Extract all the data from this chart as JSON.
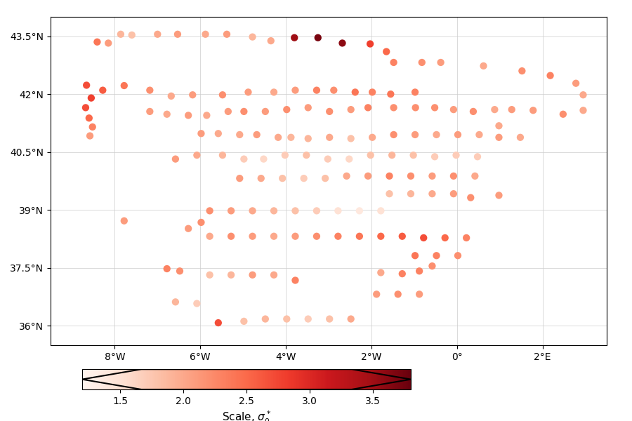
{
  "colorbar_label": "Scale, $\\sigma_0^*$",
  "vmin": 1.2,
  "vmax": 3.8,
  "cmap": "Reds",
  "xlim": [
    -9.5,
    3.5
  ],
  "ylim": [
    35.5,
    44.0
  ],
  "xticks": [
    -8,
    -6,
    -4,
    -2,
    0,
    2
  ],
  "yticks": [
    36,
    37.5,
    39,
    40.5,
    42,
    43.5
  ],
  "xtick_labels": [
    "8°W",
    "6°W",
    "4°W",
    "2°W",
    "0°",
    "2°E"
  ],
  "ytick_labels": [
    "36°N",
    "37.5°N",
    "39°N",
    "40.5°N",
    "42°N",
    "43.5°N"
  ],
  "colorbar_ticks": [
    1.5,
    2.0,
    2.5,
    3.0,
    3.5
  ],
  "colorbar_ticklabels": [
    "1.5",
    "2.0",
    "2.5",
    "3.0",
    "3.5"
  ],
  "stations": [
    {
      "lon": -8.66,
      "lat": 42.23,
      "val": 2.7
    },
    {
      "lon": -8.41,
      "lat": 43.35,
      "val": 2.4
    },
    {
      "lon": -8.15,
      "lat": 43.32,
      "val": 2.1
    },
    {
      "lon": -7.86,
      "lat": 43.55,
      "val": 1.9
    },
    {
      "lon": -7.6,
      "lat": 43.53,
      "val": 1.8
    },
    {
      "lon": -7.0,
      "lat": 43.55,
      "val": 2.0
    },
    {
      "lon": -6.53,
      "lat": 43.55,
      "val": 2.1
    },
    {
      "lon": -5.88,
      "lat": 43.55,
      "val": 2.0
    },
    {
      "lon": -5.38,
      "lat": 43.55,
      "val": 2.1
    },
    {
      "lon": -4.78,
      "lat": 43.48,
      "val": 1.9
    },
    {
      "lon": -4.35,
      "lat": 43.38,
      "val": 2.0
    },
    {
      "lon": -3.8,
      "lat": 43.46,
      "val": 3.5
    },
    {
      "lon": -3.25,
      "lat": 43.46,
      "val": 3.7
    },
    {
      "lon": -2.68,
      "lat": 43.32,
      "val": 3.6
    },
    {
      "lon": -2.03,
      "lat": 43.3,
      "val": 2.8
    },
    {
      "lon": -1.65,
      "lat": 43.1,
      "val": 2.5
    },
    {
      "lon": -1.48,
      "lat": 42.82,
      "val": 2.3
    },
    {
      "lon": -0.82,
      "lat": 42.82,
      "val": 2.2
    },
    {
      "lon": -0.38,
      "lat": 42.82,
      "val": 2.1
    },
    {
      "lon": 0.62,
      "lat": 42.73,
      "val": 2.0
    },
    {
      "lon": 1.52,
      "lat": 42.6,
      "val": 2.2
    },
    {
      "lon": 2.18,
      "lat": 42.48,
      "val": 2.3
    },
    {
      "lon": 2.78,
      "lat": 42.28,
      "val": 2.1
    },
    {
      "lon": 2.95,
      "lat": 41.98,
      "val": 2.0
    },
    {
      "lon": 2.95,
      "lat": 41.58,
      "val": 2.0
    },
    {
      "lon": 2.48,
      "lat": 41.48,
      "val": 2.2
    },
    {
      "lon": 1.78,
      "lat": 41.58,
      "val": 2.1
    },
    {
      "lon": 1.28,
      "lat": 41.6,
      "val": 2.1
    },
    {
      "lon": 0.88,
      "lat": 41.6,
      "val": 2.0
    },
    {
      "lon": 0.38,
      "lat": 41.55,
      "val": 2.2
    },
    {
      "lon": -0.08,
      "lat": 41.6,
      "val": 2.1
    },
    {
      "lon": -0.52,
      "lat": 41.65,
      "val": 2.2
    },
    {
      "lon": -0.97,
      "lat": 41.65,
      "val": 2.2
    },
    {
      "lon": -1.55,
      "lat": 42.0,
      "val": 2.4
    },
    {
      "lon": -1.98,
      "lat": 42.05,
      "val": 2.3
    },
    {
      "lon": -2.38,
      "lat": 42.05,
      "val": 2.4
    },
    {
      "lon": -2.88,
      "lat": 42.1,
      "val": 2.2
    },
    {
      "lon": -3.28,
      "lat": 42.1,
      "val": 2.3
    },
    {
      "lon": -3.78,
      "lat": 42.1,
      "val": 2.1
    },
    {
      "lon": -4.28,
      "lat": 42.05,
      "val": 2.0
    },
    {
      "lon": -4.88,
      "lat": 42.05,
      "val": 2.1
    },
    {
      "lon": -5.48,
      "lat": 41.98,
      "val": 2.2
    },
    {
      "lon": -6.18,
      "lat": 41.98,
      "val": 2.1
    },
    {
      "lon": -6.68,
      "lat": 41.95,
      "val": 2.0
    },
    {
      "lon": -7.18,
      "lat": 42.1,
      "val": 2.2
    },
    {
      "lon": -7.78,
      "lat": 42.22,
      "val": 2.4
    },
    {
      "lon": -8.28,
      "lat": 42.1,
      "val": 2.6
    },
    {
      "lon": -8.55,
      "lat": 41.9,
      "val": 2.8
    },
    {
      "lon": -8.68,
      "lat": 41.65,
      "val": 2.7
    },
    {
      "lon": -8.6,
      "lat": 41.38,
      "val": 2.5
    },
    {
      "lon": -8.52,
      "lat": 41.15,
      "val": 2.3
    },
    {
      "lon": -8.58,
      "lat": 40.92,
      "val": 2.1
    },
    {
      "lon": -7.18,
      "lat": 41.55,
      "val": 2.1
    },
    {
      "lon": -6.78,
      "lat": 41.48,
      "val": 2.0
    },
    {
      "lon": -6.28,
      "lat": 41.45,
      "val": 2.1
    },
    {
      "lon": -5.85,
      "lat": 41.45,
      "val": 2.0
    },
    {
      "lon": -5.35,
      "lat": 41.55,
      "val": 2.1
    },
    {
      "lon": -4.98,
      "lat": 41.55,
      "val": 2.2
    },
    {
      "lon": -4.48,
      "lat": 41.55,
      "val": 2.1
    },
    {
      "lon": -3.98,
      "lat": 41.6,
      "val": 2.2
    },
    {
      "lon": -3.48,
      "lat": 41.65,
      "val": 2.1
    },
    {
      "lon": -2.98,
      "lat": 41.55,
      "val": 2.2
    },
    {
      "lon": -2.48,
      "lat": 41.6,
      "val": 2.1
    },
    {
      "lon": -2.08,
      "lat": 41.65,
      "val": 2.3
    },
    {
      "lon": -1.48,
      "lat": 41.65,
      "val": 2.2
    },
    {
      "lon": -0.98,
      "lat": 42.05,
      "val": 2.3
    },
    {
      "lon": -5.98,
      "lat": 40.98,
      "val": 2.1
    },
    {
      "lon": -5.58,
      "lat": 40.98,
      "val": 2.0
    },
    {
      "lon": -5.08,
      "lat": 40.95,
      "val": 2.0
    },
    {
      "lon": -4.68,
      "lat": 40.95,
      "val": 2.1
    },
    {
      "lon": -4.18,
      "lat": 40.88,
      "val": 2.0
    },
    {
      "lon": -3.88,
      "lat": 40.88,
      "val": 1.9
    },
    {
      "lon": -3.48,
      "lat": 40.85,
      "val": 1.9
    },
    {
      "lon": -2.98,
      "lat": 40.88,
      "val": 2.0
    },
    {
      "lon": -2.48,
      "lat": 40.85,
      "val": 1.8
    },
    {
      "lon": -1.98,
      "lat": 40.88,
      "val": 2.0
    },
    {
      "lon": -1.48,
      "lat": 40.95,
      "val": 2.2
    },
    {
      "lon": -0.98,
      "lat": 40.95,
      "val": 2.1
    },
    {
      "lon": -0.48,
      "lat": 40.95,
      "val": 2.0
    },
    {
      "lon": 0.02,
      "lat": 40.95,
      "val": 2.1
    },
    {
      "lon": 0.52,
      "lat": 40.95,
      "val": 2.0
    },
    {
      "lon": 0.98,
      "lat": 40.88,
      "val": 2.1
    },
    {
      "lon": 1.48,
      "lat": 40.88,
      "val": 2.0
    },
    {
      "lon": 0.48,
      "lat": 40.38,
      "val": 1.7
    },
    {
      "lon": -0.02,
      "lat": 40.42,
      "val": 1.7
    },
    {
      "lon": -0.52,
      "lat": 40.38,
      "val": 1.7
    },
    {
      "lon": -1.02,
      "lat": 40.42,
      "val": 1.8
    },
    {
      "lon": -1.52,
      "lat": 40.42,
      "val": 1.9
    },
    {
      "lon": -2.02,
      "lat": 40.42,
      "val": 1.8
    },
    {
      "lon": -2.52,
      "lat": 40.32,
      "val": 1.6
    },
    {
      "lon": -3.02,
      "lat": 40.32,
      "val": 1.7
    },
    {
      "lon": -3.52,
      "lat": 40.42,
      "val": 1.8
    },
    {
      "lon": -4.02,
      "lat": 40.42,
      "val": 1.7
    },
    {
      "lon": -4.52,
      "lat": 40.32,
      "val": 1.6
    },
    {
      "lon": -4.98,
      "lat": 40.32,
      "val": 1.7
    },
    {
      "lon": -5.48,
      "lat": 40.42,
      "val": 1.9
    },
    {
      "lon": -6.08,
      "lat": 40.42,
      "val": 2.0
    },
    {
      "lon": -6.58,
      "lat": 40.32,
      "val": 2.1
    },
    {
      "lon": -5.08,
      "lat": 39.82,
      "val": 2.1
    },
    {
      "lon": -4.58,
      "lat": 39.82,
      "val": 2.0
    },
    {
      "lon": -4.08,
      "lat": 39.82,
      "val": 1.8
    },
    {
      "lon": -3.58,
      "lat": 39.82,
      "val": 1.7
    },
    {
      "lon": -3.08,
      "lat": 39.82,
      "val": 1.8
    },
    {
      "lon": -2.58,
      "lat": 39.88,
      "val": 2.0
    },
    {
      "lon": -2.08,
      "lat": 39.88,
      "val": 2.1
    },
    {
      "lon": -1.58,
      "lat": 39.88,
      "val": 2.3
    },
    {
      "lon": -1.08,
      "lat": 39.88,
      "val": 2.2
    },
    {
      "lon": -0.58,
      "lat": 39.88,
      "val": 2.1
    },
    {
      "lon": -0.08,
      "lat": 39.88,
      "val": 2.2
    },
    {
      "lon": 0.42,
      "lat": 39.88,
      "val": 2.0
    },
    {
      "lon": -0.08,
      "lat": 39.42,
      "val": 2.1
    },
    {
      "lon": -0.58,
      "lat": 39.42,
      "val": 2.0
    },
    {
      "lon": -1.08,
      "lat": 39.42,
      "val": 1.9
    },
    {
      "lon": -1.58,
      "lat": 39.42,
      "val": 1.8
    },
    {
      "lon": -1.78,
      "lat": 38.98,
      "val": 1.5
    },
    {
      "lon": -2.28,
      "lat": 38.98,
      "val": 1.4
    },
    {
      "lon": -2.78,
      "lat": 38.98,
      "val": 1.5
    },
    {
      "lon": -3.28,
      "lat": 38.98,
      "val": 1.7
    },
    {
      "lon": -3.78,
      "lat": 38.98,
      "val": 1.8
    },
    {
      "lon": -4.28,
      "lat": 38.98,
      "val": 1.9
    },
    {
      "lon": -4.78,
      "lat": 38.98,
      "val": 2.0
    },
    {
      "lon": -5.28,
      "lat": 38.98,
      "val": 2.1
    },
    {
      "lon": -5.78,
      "lat": 38.98,
      "val": 2.2
    },
    {
      "lon": -6.28,
      "lat": 38.52,
      "val": 2.1
    },
    {
      "lon": -7.78,
      "lat": 38.72,
      "val": 2.1
    },
    {
      "lon": -5.78,
      "lat": 38.32,
      "val": 2.0
    },
    {
      "lon": -5.28,
      "lat": 38.32,
      "val": 2.2
    },
    {
      "lon": -4.78,
      "lat": 38.32,
      "val": 2.1
    },
    {
      "lon": -4.28,
      "lat": 38.32,
      "val": 2.0
    },
    {
      "lon": -3.78,
      "lat": 38.32,
      "val": 2.1
    },
    {
      "lon": -3.28,
      "lat": 38.32,
      "val": 2.2
    },
    {
      "lon": -2.78,
      "lat": 38.32,
      "val": 2.3
    },
    {
      "lon": -2.28,
      "lat": 38.32,
      "val": 2.4
    },
    {
      "lon": -1.78,
      "lat": 38.32,
      "val": 2.5
    },
    {
      "lon": -1.28,
      "lat": 38.32,
      "val": 2.6
    },
    {
      "lon": -0.78,
      "lat": 38.28,
      "val": 2.7
    },
    {
      "lon": -0.28,
      "lat": 38.28,
      "val": 2.5
    },
    {
      "lon": 0.22,
      "lat": 38.28,
      "val": 2.3
    },
    {
      "lon": -0.98,
      "lat": 37.82,
      "val": 2.4
    },
    {
      "lon": -0.48,
      "lat": 37.82,
      "val": 2.3
    },
    {
      "lon": 0.02,
      "lat": 37.82,
      "val": 2.2
    },
    {
      "lon": -0.58,
      "lat": 37.55,
      "val": 2.2
    },
    {
      "lon": -0.88,
      "lat": 37.42,
      "val": 2.3
    },
    {
      "lon": -1.28,
      "lat": 37.35,
      "val": 2.3
    },
    {
      "lon": -1.78,
      "lat": 37.38,
      "val": 2.0
    },
    {
      "lon": -3.78,
      "lat": 37.18,
      "val": 2.3
    },
    {
      "lon": -4.28,
      "lat": 37.32,
      "val": 2.0
    },
    {
      "lon": -4.78,
      "lat": 37.32,
      "val": 2.1
    },
    {
      "lon": -5.28,
      "lat": 37.32,
      "val": 1.9
    },
    {
      "lon": -5.78,
      "lat": 37.32,
      "val": 1.8
    },
    {
      "lon": -6.48,
      "lat": 37.42,
      "val": 2.2
    },
    {
      "lon": -6.78,
      "lat": 37.48,
      "val": 2.3
    },
    {
      "lon": -6.58,
      "lat": 36.62,
      "val": 1.9
    },
    {
      "lon": -6.08,
      "lat": 36.58,
      "val": 1.7
    },
    {
      "lon": -5.58,
      "lat": 36.08,
      "val": 2.7
    },
    {
      "lon": -4.98,
      "lat": 36.12,
      "val": 1.8
    },
    {
      "lon": -4.48,
      "lat": 36.18,
      "val": 1.9
    },
    {
      "lon": -3.98,
      "lat": 36.18,
      "val": 1.8
    },
    {
      "lon": -3.48,
      "lat": 36.18,
      "val": 1.7
    },
    {
      "lon": -2.98,
      "lat": 36.18,
      "val": 1.8
    },
    {
      "lon": -2.48,
      "lat": 36.18,
      "val": 2.0
    },
    {
      "lon": -1.88,
      "lat": 36.82,
      "val": 2.1
    },
    {
      "lon": -1.38,
      "lat": 36.82,
      "val": 2.2
    },
    {
      "lon": -0.88,
      "lat": 36.82,
      "val": 2.1
    },
    {
      "lon": 0.32,
      "lat": 39.32,
      "val": 2.2
    },
    {
      "lon": 0.98,
      "lat": 39.38,
      "val": 2.1
    },
    {
      "lon": -5.98,
      "lat": 38.68,
      "val": 2.2
    },
    {
      "lon": 0.98,
      "lat": 41.18,
      "val": 2.0
    }
  ],
  "marker_size": 55,
  "background_color": "#ffffff",
  "map_background": "#ffffff",
  "grid_color": "#cccccc",
  "coast_color": "#000000",
  "coast_lw": 0.7
}
